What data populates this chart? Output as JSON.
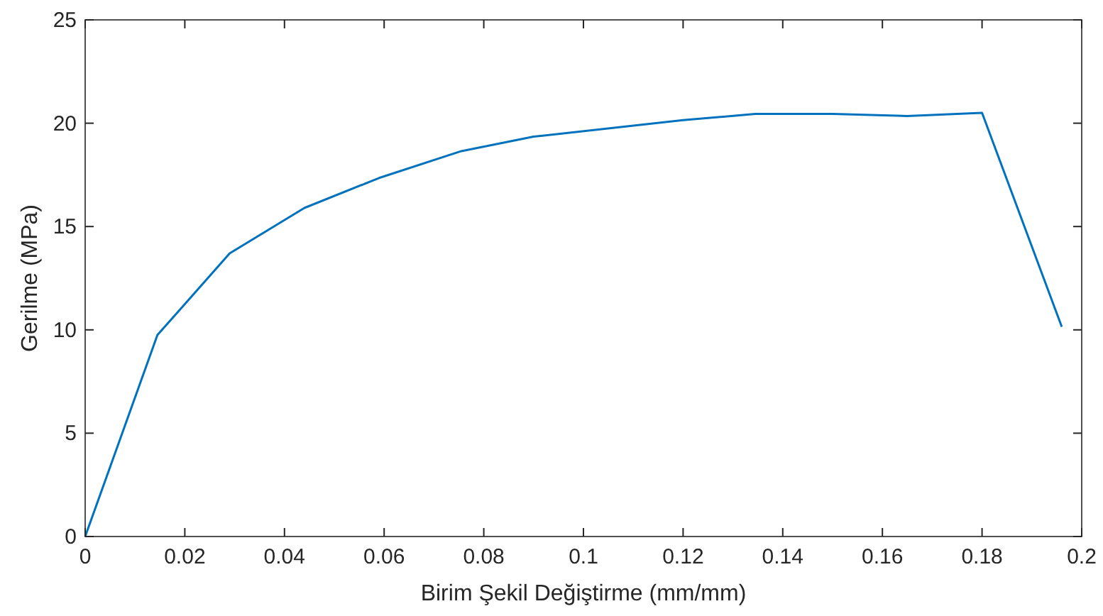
{
  "chart_data": {
    "type": "line",
    "xlabel": "Birim Şekil Değiştirme (mm/mm)",
    "ylabel": "Gerilme (MPa)",
    "x": [
      0,
      0.0145,
      0.029,
      0.044,
      0.059,
      0.0755,
      0.09,
      0.12,
      0.1345,
      0.15,
      0.165,
      0.18,
      0.196
    ],
    "series": [
      {
        "color": "#0072bd",
        "values": [
          0,
          9.75,
          13.7,
          15.9,
          17.35,
          18.65,
          19.35,
          20.15,
          20.45,
          20.45,
          20.35,
          20.5,
          10.15
        ]
      }
    ],
    "xlim": [
      0,
      0.2
    ],
    "xticks": [
      0,
      0.02,
      0.04,
      0.06,
      0.08,
      0.1,
      0.12,
      0.14,
      0.16,
      0.18,
      0.2
    ],
    "ylim": [
      0,
      25
    ],
    "yticks": [
      0,
      5,
      10,
      15,
      20,
      25
    ],
    "grid": false,
    "marker": "none",
    "line_style": "solid"
  }
}
